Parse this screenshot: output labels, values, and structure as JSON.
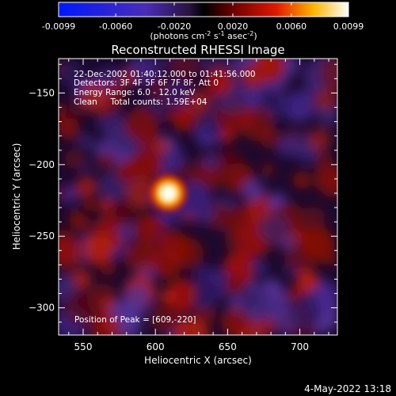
{
  "chart_data": {
    "type": "heatmap",
    "title": "Reconstructed RHESSI Image",
    "xlabel": "Heliocentric X (arcsec)",
    "ylabel": "Heliocentric Y (arcsec)",
    "xlim": [
      533,
      726
    ],
    "ylim": [
      -319,
      -126
    ],
    "x_ticks": [
      550,
      600,
      650,
      700
    ],
    "y_ticks": [
      -150,
      -200,
      -250,
      -300
    ],
    "colorbar": {
      "min": -0.0099,
      "max": 0.0099,
      "tick_values": [
        -0.0099,
        -0.006,
        -0.002,
        0.002,
        0.006,
        0.0099
      ],
      "tick_labels": [
        "-0.0099",
        "-0.0060",
        "-0.0020",
        "0.0020",
        "0.0060",
        "0.0099"
      ],
      "unit_label": "(photons cm",
      "unit_sup1": "-2",
      "unit_mid": " s",
      "unit_sup2": "-1",
      "unit_mid2": " asec",
      "unit_sup3": "-2",
      "unit_end": ")"
    },
    "annotations": [
      "22-Dec-2002 01:40:12.000 to 01:41:56.000",
      "Detectors: 3F 4F 5F 6F 7F 8F, Att 0",
      "Energy Range: 6.0 - 12.0 keV",
      "Clean     Total counts: 1.59E+04"
    ],
    "peak_label": "Position of Peak = [609,-220]",
    "peak": {
      "x": 609,
      "y": -220
    },
    "footer": "4-May-2022 13:18",
    "colors": {
      "background": "#000000",
      "colormap": [
        "#0000ff",
        "#5a2ab0",
        "#3a1a5a",
        "#000000",
        "#8a0000",
        "#ff2a00",
        "#ffd400",
        "#ffffff"
      ]
    }
  }
}
